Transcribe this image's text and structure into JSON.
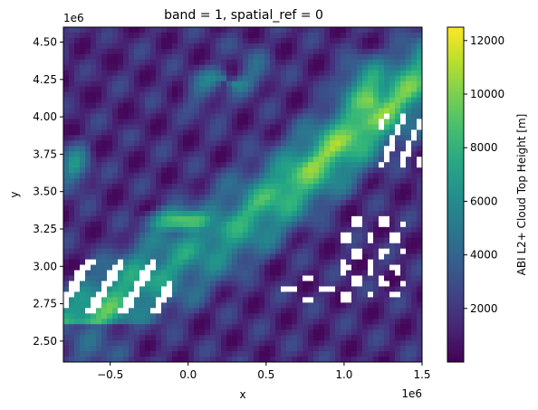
{
  "chart_data": {
    "type": "heatmap",
    "title": "band = 1, spatial_ref = 0",
    "xlabel": "x",
    "ylabel": "y",
    "x_offset_label": "1e6",
    "y_offset_label": "1e6",
    "xlim": [
      -800000,
      1500000
    ],
    "ylim": [
      2360000,
      4600000
    ],
    "x_ticks": [
      {
        "value": -500000,
        "label": "−0.5"
      },
      {
        "value": 0,
        "label": "0.0"
      },
      {
        "value": 500000,
        "label": "0.5"
      },
      {
        "value": 1000000,
        "label": "1.0"
      },
      {
        "value": 1500000,
        "label": "1.5"
      }
    ],
    "y_ticks": [
      {
        "value": 2500000,
        "label": "2.50"
      },
      {
        "value": 2750000,
        "label": "2.75"
      },
      {
        "value": 3000000,
        "label": "3.00"
      },
      {
        "value": 3250000,
        "label": "3.25"
      },
      {
        "value": 3500000,
        "label": "3.50"
      },
      {
        "value": 3750000,
        "label": "3.75"
      },
      {
        "value": 4000000,
        "label": "4.00"
      },
      {
        "value": 4250000,
        "label": "4.25"
      },
      {
        "value": 4500000,
        "label": "4.50"
      }
    ],
    "colorbar": {
      "label": "ABI L2+ Cloud Top Height [m]",
      "vmin": 0,
      "vmax": 12500,
      "colormap": "viridis",
      "ticks": [
        {
          "value": 2000,
          "label": "2000"
        },
        {
          "value": 4000,
          "label": "4000"
        },
        {
          "value": 6000,
          "label": "6000"
        },
        {
          "value": 8000,
          "label": "8000"
        },
        {
          "value": 10000,
          "label": "10000"
        },
        {
          "value": 12000,
          "label": "12000"
        }
      ]
    },
    "nodata_color": "#ffffff"
  }
}
